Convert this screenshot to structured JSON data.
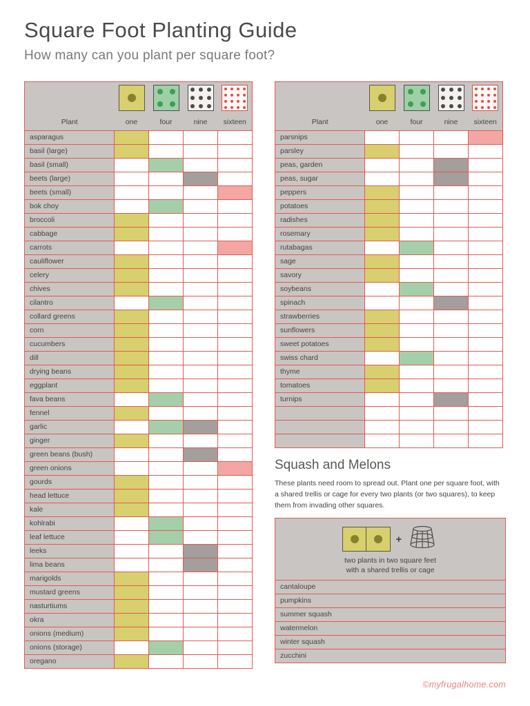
{
  "page": {
    "title": "Square Foot Planting Guide",
    "subtitle": "How many can you plant per square foot?",
    "footer_credit": "©myfrugalhome.com"
  },
  "table": {
    "plant_header": "Plant",
    "columns": [
      "one",
      "four",
      "nine",
      "sixteen"
    ],
    "cell_colors": {
      "one": "#d8cf6e",
      "four": "#a5cfa9",
      "nine": "#a49e9c",
      "sixteen": "#f3a6a2"
    },
    "legend_icons": [
      {
        "name": "one",
        "count": 1,
        "bg": "#d8cf6e",
        "dot": "#87812f",
        "border": "#5a5743"
      },
      {
        "name": "four",
        "count": 4,
        "bg": "#9ed0a6",
        "dot": "#3f9c5a",
        "border": "#4c4c4c"
      },
      {
        "name": "nine",
        "count": 9,
        "bg": "#f4f2ee",
        "dot": "#4c4c4c",
        "border": "#4c4c4c"
      },
      {
        "name": "sixteen",
        "count": 16,
        "bg": "#fdf8f7",
        "dot": "#dc4f46",
        "border": "#dc4f46"
      }
    ]
  },
  "left_table": {
    "rows": [
      {
        "name": "asparagus",
        "values": [
          "one"
        ]
      },
      {
        "name": "basil (large)",
        "values": [
          "one"
        ]
      },
      {
        "name": "basil (small)",
        "values": [
          "four"
        ]
      },
      {
        "name": "beets (large)",
        "values": [
          "nine"
        ]
      },
      {
        "name": "beets (small)",
        "values": [
          "sixteen"
        ]
      },
      {
        "name": "bok choy",
        "values": [
          "four"
        ]
      },
      {
        "name": "broccoli",
        "values": [
          "one"
        ]
      },
      {
        "name": "cabbage",
        "values": [
          "one"
        ]
      },
      {
        "name": "carrots",
        "values": [
          "sixteen"
        ]
      },
      {
        "name": "cauliflower",
        "values": [
          "one"
        ]
      },
      {
        "name": "celery",
        "values": [
          "one"
        ]
      },
      {
        "name": "chives",
        "values": [
          "one"
        ]
      },
      {
        "name": "cilantro",
        "values": [
          "four"
        ]
      },
      {
        "name": "collard greens",
        "values": [
          "one"
        ]
      },
      {
        "name": "corn",
        "values": [
          "one"
        ]
      },
      {
        "name": "cucumbers",
        "values": [
          "one"
        ]
      },
      {
        "name": "dill",
        "values": [
          "one"
        ]
      },
      {
        "name": "drying beans",
        "values": [
          "one"
        ]
      },
      {
        "name": "eggplant",
        "values": [
          "one"
        ]
      },
      {
        "name": "fava beans",
        "values": [
          "four"
        ]
      },
      {
        "name": "fennel",
        "values": [
          "one"
        ]
      },
      {
        "name": "garlic",
        "values": [
          "four",
          "nine"
        ]
      },
      {
        "name": "ginger",
        "values": [
          "one"
        ]
      },
      {
        "name": "green beans (bush)",
        "values": [
          "nine"
        ]
      },
      {
        "name": "green onions",
        "values": [
          "sixteen"
        ]
      },
      {
        "name": "gourds",
        "values": [
          "one"
        ]
      },
      {
        "name": "head lettuce",
        "values": [
          "one"
        ]
      },
      {
        "name": "kale",
        "values": [
          "one"
        ]
      },
      {
        "name": "kohlrabi",
        "values": [
          "four"
        ]
      },
      {
        "name": "leaf lettuce",
        "values": [
          "four"
        ]
      },
      {
        "name": "leeks",
        "values": [
          "nine"
        ]
      },
      {
        "name": "lima beans",
        "values": [
          "nine"
        ]
      },
      {
        "name": "marigolds",
        "values": [
          "one"
        ]
      },
      {
        "name": "mustard greens",
        "values": [
          "one"
        ]
      },
      {
        "name": "nasturtiums",
        "values": [
          "one"
        ]
      },
      {
        "name": "okra",
        "values": [
          "one"
        ]
      },
      {
        "name": "onions (medium)",
        "values": [
          "one"
        ]
      },
      {
        "name": "onions (storage)",
        "values": [
          "four"
        ]
      },
      {
        "name": "oregano",
        "values": [
          "one"
        ]
      }
    ],
    "empty_row_count": 0
  },
  "right_table": {
    "rows": [
      {
        "name": "parsnips",
        "values": [
          "sixteen"
        ]
      },
      {
        "name": "parsley",
        "values": [
          "one"
        ]
      },
      {
        "name": "peas, garden",
        "values": [
          "nine"
        ]
      },
      {
        "name": "peas, sugar",
        "values": [
          "nine"
        ]
      },
      {
        "name": "peppers",
        "values": [
          "one"
        ]
      },
      {
        "name": "potatoes",
        "values": [
          "one"
        ]
      },
      {
        "name": "radishes",
        "values": [
          "one"
        ]
      },
      {
        "name": "rosemary",
        "values": [
          "one"
        ]
      },
      {
        "name": "rutabagas",
        "values": [
          "four"
        ]
      },
      {
        "name": "sage",
        "values": [
          "one"
        ]
      },
      {
        "name": "savory",
        "values": [
          "one"
        ]
      },
      {
        "name": "soybeans",
        "values": [
          "four"
        ]
      },
      {
        "name": "spinach",
        "values": [
          "nine"
        ]
      },
      {
        "name": "strawberries",
        "values": [
          "one"
        ]
      },
      {
        "name": "sunflowers",
        "values": [
          "one"
        ]
      },
      {
        "name": "sweet potatoes",
        "values": [
          "one"
        ]
      },
      {
        "name": "swiss chard",
        "values": [
          "four"
        ]
      },
      {
        "name": "thyme",
        "values": [
          "one"
        ]
      },
      {
        "name": "tomatoes",
        "values": [
          "one"
        ]
      },
      {
        "name": "turnips",
        "values": [
          "nine"
        ]
      }
    ],
    "empty_row_count": 3
  },
  "squash_section": {
    "title": "Squash and Melons",
    "description": "These plants need room to spread out. Plant one per square foot, with a shared trellis or cage for every two plants (or two squares), to keep them from invading other squares.",
    "plus": "+",
    "caption_line1": "two plants in two square feet",
    "caption_line2": "with a shared trellis or cage",
    "plants": [
      "cantaloupe",
      "pumpkins",
      "summer squash",
      "watermelon",
      "winter squash",
      "zucchini"
    ]
  }
}
